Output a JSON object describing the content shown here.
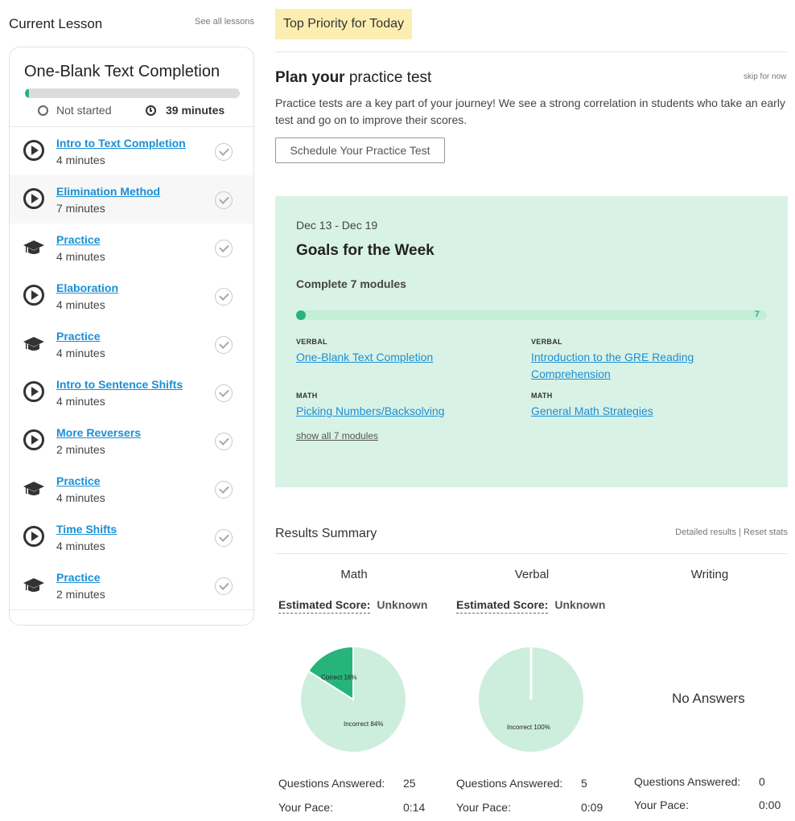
{
  "left": {
    "title": "Current Lesson",
    "see_all": "See all lessons",
    "card": {
      "title": "One-Blank Text Completion",
      "progress": 0.02,
      "status": "Not started",
      "duration": "39 minutes"
    },
    "lessons": [
      {
        "name": "Intro to Text Completion",
        "duration": "4 minutes",
        "type": "video"
      },
      {
        "name": "Elimination Method",
        "duration": "7 minutes",
        "type": "video"
      },
      {
        "name": "Practice",
        "duration": "4 minutes",
        "type": "practice"
      },
      {
        "name": "Elaboration",
        "duration": "4 minutes",
        "type": "video"
      },
      {
        "name": "Practice",
        "duration": "4 minutes",
        "type": "practice"
      },
      {
        "name": "Intro to Sentence Shifts",
        "duration": "4 minutes",
        "type": "video"
      },
      {
        "name": "More Reversers",
        "duration": "2 minutes",
        "type": "video"
      },
      {
        "name": "Practice",
        "duration": "4 minutes",
        "type": "practice"
      },
      {
        "name": "Time Shifts",
        "duration": "4 minutes",
        "type": "video"
      },
      {
        "name": "Practice",
        "duration": "2 minutes",
        "type": "practice"
      }
    ]
  },
  "priority": {
    "badge": "Top Priority for Today",
    "title_bold": "Plan your",
    "title_rest": " practice test",
    "skip": "skip for now",
    "text": "Practice tests are a key part of your journey! We see a strong correlation in students who take an early test and go on to improve their scores.",
    "button": "Schedule Your Practice Test"
  },
  "goals": {
    "date_range": "Dec 13 - Dec 19",
    "title": "Goals for the Week",
    "subtitle": "Complete 7 modules",
    "completed": 0,
    "total": 7,
    "count_label": "7",
    "modules": [
      {
        "category": "VERBAL",
        "name": "One-Blank Text Completion"
      },
      {
        "category": "VERBAL",
        "name": "Introduction to the GRE Reading Comprehension"
      },
      {
        "category": "MATH",
        "name": "Picking Numbers/Backsolving"
      },
      {
        "category": "MATH",
        "name": "General Math Strategies"
      }
    ],
    "show_all": "show all 7 modules"
  },
  "results": {
    "title": "Results Summary",
    "detailed": "Detailed results",
    "divider": " | ",
    "reset": "Reset stats",
    "est_label": "Estimated Score:",
    "questions_label": "Questions Answered:",
    "pace_label": "Your Pace:",
    "no_answers": "No Answers",
    "colors": {
      "correct": "#27b47b",
      "incorrect": "#cdeedd"
    },
    "subjects": [
      {
        "name": "Math",
        "estimated": "Unknown",
        "questions": "25",
        "pace": "0:14",
        "pie": {
          "correct_label": "Correct 16%",
          "incorrect_label": "Incorrect 84%"
        }
      },
      {
        "name": "Verbal",
        "estimated": "Unknown",
        "questions": "5",
        "pace": "0:09",
        "pie": {
          "incorrect_label": "Incorrect 100%"
        }
      },
      {
        "name": "Writing",
        "questions": "0",
        "pace": "0:00"
      }
    ]
  },
  "chart_data": [
    {
      "type": "pie",
      "categories": [
        "Correct",
        "Incorrect"
      ],
      "values": [
        16,
        84
      ]
    },
    {
      "type": "pie",
      "categories": [
        "Correct",
        "Incorrect"
      ],
      "values": [
        0,
        100
      ]
    }
  ]
}
